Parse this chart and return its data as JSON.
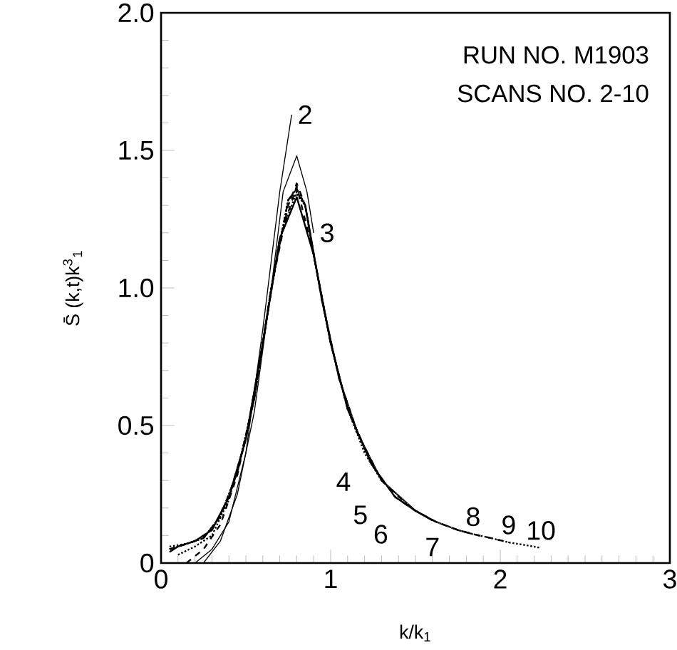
{
  "chart_data": {
    "type": "line",
    "xlabel": "k/k$_{1}$",
    "ylabel": "S̄ (k,t)k$^{3}$$_{1}$",
    "annotations": [
      "RUN NO. M1903",
      "SCANS NO. 2-10"
    ],
    "xlim": [
      0,
      3
    ],
    "ylim": [
      0,
      2
    ],
    "xticks": [
      0,
      1,
      2,
      3
    ],
    "yticks": [
      0,
      {
        "value": 0.5,
        "label": "0.5"
      },
      {
        "value": 1,
        "label": "1.0"
      },
      {
        "value": 1.5,
        "label": "1.5"
      },
      {
        "value": 2,
        "label": "2.0"
      }
    ],
    "grid": false,
    "legend": false,
    "marker": "none",
    "series": [
      {
        "name": "2",
        "color": "#000000",
        "line_style": "solid",
        "x": [
          0.2,
          0.3,
          0.4,
          0.5,
          0.6,
          0.7,
          0.77
        ],
        "values": [
          0,
          0.05,
          0.15,
          0.4,
          0.85,
          1.35,
          1.63
        ]
      },
      {
        "name": "3",
        "color": "#000000",
        "line_style": "solid",
        "x": [
          0.25,
          0.35,
          0.45,
          0.55,
          0.65,
          0.72,
          0.8,
          0.86,
          0.9
        ],
        "values": [
          0,
          0.08,
          0.25,
          0.55,
          1.0,
          1.35,
          1.48,
          1.35,
          1.2
        ]
      },
      {
        "name": "4",
        "color": "#000000",
        "line_style": "dashed",
        "x": [
          0.15,
          0.25,
          0.35,
          0.45,
          0.55,
          0.65,
          0.75,
          0.8,
          0.85,
          0.9,
          1.0,
          1.1,
          1.2
        ],
        "values": [
          0,
          0.05,
          0.14,
          0.32,
          0.6,
          1.0,
          1.3,
          1.38,
          1.3,
          1.12,
          0.8,
          0.56,
          0.42
        ]
      },
      {
        "name": "5",
        "color": "#000000",
        "line_style": "dotted",
        "x": [
          0.1,
          0.2,
          0.3,
          0.4,
          0.5,
          0.6,
          0.7,
          0.8,
          0.85,
          0.9,
          1.0,
          1.1,
          1.2,
          1.3
        ],
        "values": [
          0.03,
          0.06,
          0.1,
          0.23,
          0.45,
          0.8,
          1.18,
          1.35,
          1.3,
          1.12,
          0.8,
          0.56,
          0.4,
          0.3
        ]
      },
      {
        "name": "6",
        "color": "#000000",
        "line_style": "dashed",
        "x": [
          0.05,
          0.15,
          0.25,
          0.35,
          0.45,
          0.55,
          0.65,
          0.75,
          0.8,
          0.85,
          0.95,
          1.05,
          1.16,
          1.3,
          1.42
        ],
        "values": [
          0.05,
          0.07,
          0.09,
          0.17,
          0.33,
          0.6,
          1.0,
          1.32,
          1.36,
          1.3,
          0.95,
          0.67,
          0.47,
          0.3,
          0.23
        ]
      },
      {
        "name": "7",
        "color": "#000000",
        "line_style": "solid",
        "x": [
          0.05,
          0.1,
          0.2,
          0.3,
          0.4,
          0.5,
          0.6,
          0.7,
          0.8,
          0.9,
          1.0,
          1.1,
          1.24,
          1.38,
          1.5,
          1.6
        ],
        "values": [
          0.04,
          0.06,
          0.08,
          0.12,
          0.24,
          0.45,
          0.8,
          1.18,
          1.33,
          1.12,
          0.8,
          0.56,
          0.36,
          0.24,
          0.19,
          0.155
        ]
      },
      {
        "name": "8",
        "color": "#000000",
        "line_style": "dotted",
        "x": [
          0.05,
          0.15,
          0.25,
          0.35,
          0.45,
          0.55,
          0.65,
          0.75,
          0.8,
          0.85,
          0.95,
          1.05,
          1.16,
          1.3,
          1.5,
          1.62,
          1.75,
          1.84
        ],
        "values": [
          0.06,
          0.07,
          0.09,
          0.17,
          0.33,
          0.6,
          1.0,
          1.32,
          1.34,
          1.3,
          0.95,
          0.67,
          0.47,
          0.3,
          0.19,
          0.15,
          0.12,
          0.105
        ]
      },
      {
        "name": "9",
        "color": "#000000",
        "line_style": "dashed",
        "x": [
          0.05,
          0.1,
          0.2,
          0.3,
          0.4,
          0.5,
          0.6,
          0.7,
          0.8,
          0.9,
          1.0,
          1.1,
          1.24,
          1.38,
          1.5,
          1.62,
          1.75,
          1.84,
          1.95,
          2.05
        ],
        "values": [
          0.05,
          0.06,
          0.08,
          0.12,
          0.24,
          0.45,
          0.8,
          1.18,
          1.37,
          1.12,
          0.8,
          0.56,
          0.36,
          0.24,
          0.19,
          0.15,
          0.12,
          0.105,
          0.09,
          0.075
        ]
      },
      {
        "name": "10",
        "color": "#000000",
        "line_style": "dotted",
        "x": [
          0.05,
          0.15,
          0.25,
          0.35,
          0.45,
          0.55,
          0.65,
          0.75,
          0.8,
          0.85,
          0.95,
          1.05,
          1.16,
          1.3,
          1.5,
          1.62,
          1.75,
          1.84,
          1.95,
          2.05,
          2.15,
          2.24
        ],
        "values": [
          0.05,
          0.07,
          0.09,
          0.17,
          0.33,
          0.6,
          1.0,
          1.32,
          1.36,
          1.3,
          0.95,
          0.67,
          0.47,
          0.3,
          0.19,
          0.15,
          0.12,
          0.105,
          0.09,
          0.075,
          0.065,
          0.055
        ]
      }
    ]
  }
}
